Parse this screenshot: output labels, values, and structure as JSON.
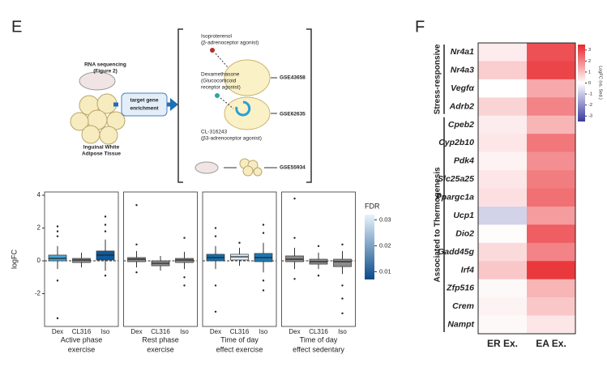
{
  "panels": {
    "e": "E",
    "f": "F"
  },
  "diagram": {
    "rna": [
      "RNA sequencing",
      "(Figure 2)"
    ],
    "tissue": [
      "Inguinal White",
      "Adipose Tissue"
    ],
    "enrichment": [
      "target gene",
      "enrichment"
    ],
    "treatments": [
      {
        "label": [
          "Isoproterenol",
          "(β-adrenoceptor agonist)"
        ],
        "dataset": "GSE43658"
      },
      {
        "label": [
          "Dexamethasone",
          "(Glucocorticoid",
          "receptor agonist)"
        ],
        "dataset": "GSE62635"
      },
      {
        "label": [
          "CL-316243",
          "(β3-adrenoceptor agonist)"
        ],
        "dataset": "GSE55934"
      }
    ]
  },
  "chart_data": [
    {
      "type": "box",
      "y_label": "logFC",
      "ylim": [
        -4,
        4.2
      ],
      "yticks": [
        -2,
        0,
        2,
        4
      ],
      "reference_line": 0,
      "facets": [
        {
          "title": [
            "Active phase",
            "exercise"
          ],
          "categories": [
            "Dex",
            "CL316",
            "Iso"
          ],
          "boxes": [
            {
              "low": -0.5,
              "q1": 0,
              "median": 0.15,
              "q3": 0.35,
              "high": 0.9,
              "color": "#45a6d6",
              "outliers": [
                2.1,
                1.8,
                1.5,
                -1.2,
                -3.5
              ]
            },
            {
              "low": -0.4,
              "q1": -0.1,
              "median": 0.05,
              "q3": 0.15,
              "high": 0.5,
              "color": "#8c8c8c",
              "outliers": []
            },
            {
              "low": -0.6,
              "q1": 0.05,
              "median": 0.35,
              "q3": 0.6,
              "high": 1.3,
              "color": "#0d5a9e",
              "outliers": [
                2.7,
                2.2,
                1.8,
                -0.9
              ]
            }
          ]
        },
        {
          "title": [
            "Rest phase",
            "exercise"
          ],
          "categories": [
            "Dex",
            "CL316",
            "Iso"
          ],
          "boxes": [
            {
              "low": -0.4,
              "q1": -0.05,
              "median": 0.1,
              "q3": 0.2,
              "high": 0.6,
              "color": "#8c8c8c",
              "outliers": [
                3.4,
                1.0,
                -0.7
              ]
            },
            {
              "low": -0.6,
              "q1": -0.3,
              "median": -0.15,
              "q3": 0,
              "high": 0.3,
              "color": "#8c8c8c",
              "outliers": []
            },
            {
              "low": -0.5,
              "q1": -0.1,
              "median": 0.05,
              "q3": 0.15,
              "high": 0.55,
              "color": "#8c8c8c",
              "outliers": [
                1.4,
                -1.0,
                -1.5
              ]
            }
          ]
        },
        {
          "title": [
            "Time of day",
            "effect exercise"
          ],
          "categories": [
            "Dex",
            "CL316",
            "Iso"
          ],
          "boxes": [
            {
              "low": -0.5,
              "q1": 0,
              "median": 0.2,
              "q3": 0.4,
              "high": 0.9,
              "color": "#1570ad",
              "outliers": [
                2.0,
                1.5,
                -1.5,
                -3.1
              ]
            },
            {
              "low": -0.3,
              "q1": 0.05,
              "median": 0.25,
              "q3": 0.4,
              "high": 0.8,
              "color": "#dcecf5",
              "outliers": [
                1.1
              ]
            },
            {
              "low": -0.7,
              "q1": -0.05,
              "median": 0.2,
              "q3": 0.45,
              "high": 1.1,
              "color": "#1a78b5",
              "outliers": [
                2.2,
                1.7,
                -1.2,
                -1.8
              ]
            }
          ]
        },
        {
          "title": [
            "Time of day",
            "effect sedentary"
          ],
          "categories": [
            "Dex",
            "CL316",
            "Iso"
          ],
          "boxes": [
            {
              "low": -0.5,
              "q1": -0.05,
              "median": 0.1,
              "q3": 0.3,
              "high": 0.8,
              "color": "#8c8c8c",
              "outliers": [
                3.8,
                1.4,
                -1.1
              ]
            },
            {
              "low": -0.5,
              "q1": -0.2,
              "median": -0.05,
              "q3": 0.1,
              "high": 0.5,
              "color": "#8c8c8c",
              "outliers": [
                0.9,
                -0.9
              ]
            },
            {
              "low": -0.8,
              "q1": -0.35,
              "median": -0.05,
              "q3": 0.1,
              "high": 0.6,
              "color": "#8c8c8c",
              "outliers": [
                1.0,
                -1.5,
                -2.3,
                -3.2
              ]
            }
          ]
        }
      ],
      "colorbar": {
        "title": "FDR",
        "lim": [
          0.007,
          0.032
        ],
        "ticks": [
          0.01,
          0.02,
          0.03
        ],
        "colors": [
          "#0a4a8a",
          "#e6f3fb"
        ]
      }
    },
    {
      "type": "heatmap",
      "rows": [
        "Nr4a1",
        "Nr4a3",
        "Vegfα",
        "Adrb2",
        "Cpeb2",
        "Cyp2b10",
        "Pdk4",
        "Slc25a25",
        "Ppargc1a",
        "Ucp1",
        "Dio2",
        "Gadd45g",
        "Irf4",
        "Zfp516",
        "Crem",
        "Nampt"
      ],
      "columns": [
        "ER Ex.",
        "EA Ex."
      ],
      "values": [
        [
          0.3,
          2.8
        ],
        [
          0.8,
          3.0
        ],
        [
          0,
          1.4
        ],
        [
          0.7,
          2.0
        ],
        [
          0.3,
          1.2
        ],
        [
          0.4,
          2.2
        ],
        [
          0.2,
          1.8
        ],
        [
          0.4,
          2.1
        ],
        [
          0.5,
          2.3
        ],
        [
          -0.8,
          1.6
        ],
        [
          0.05,
          2.6
        ],
        [
          0.6,
          2.0
        ],
        [
          0.9,
          3.2
        ],
        [
          0.1,
          1.2
        ],
        [
          0.2,
          0.9
        ],
        [
          0.1,
          0.4
        ]
      ],
      "groups": [
        {
          "label": "Stress-responsive",
          "rows": [
            0,
            3
          ]
        },
        {
          "label": "Associated to Thermogenesis",
          "rows": [
            4,
            15
          ]
        }
      ],
      "colorbar": {
        "title": "LogFC (vs. Sed.)",
        "lim": [
          -3.5,
          3.5
        ],
        "ticks": [
          3,
          2,
          1,
          0,
          -1,
          -2,
          -3
        ],
        "colors": [
          "#3a3aa0",
          "#ffffff",
          "#e8262b"
        ]
      }
    }
  ]
}
